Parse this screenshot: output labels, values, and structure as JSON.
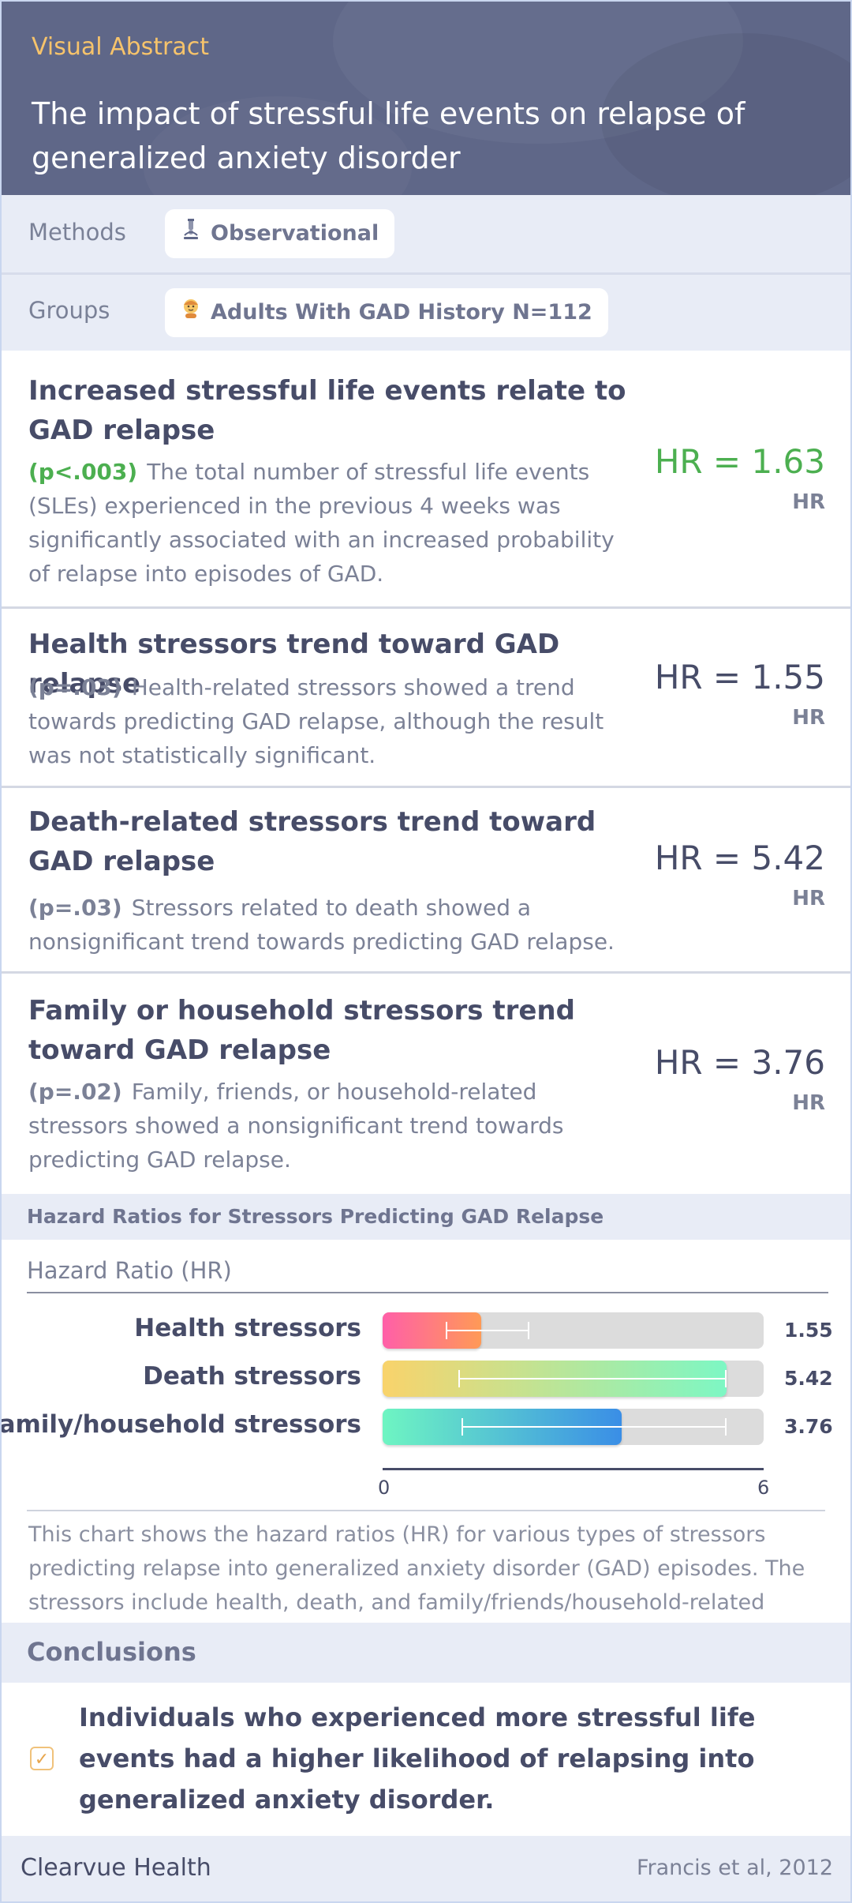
{
  "header": {
    "tag": "Visual Abstract",
    "title": "The impact of stressful life events on relapse of generalized anxiety disorder"
  },
  "methods": {
    "label": "Methods",
    "icon": "microscope-icon",
    "value": "Observational"
  },
  "groups": {
    "label": "Groups",
    "icon": "person-icon",
    "value": "Adults With GAD History N=112"
  },
  "findings": [
    {
      "title": "Increased stressful life events relate to GAD relapse",
      "p": "(p<.003)",
      "body": "The total number of stressful life events (SLEs) experienced in the previous 4 weeks was significantly associated with an increased probability of relapse into episodes of GAD.",
      "hr": "HR = 1.63",
      "hr_label": "HR",
      "highlight_color": "#4caf50"
    },
    {
      "title": "Health stressors trend toward GAD relapse",
      "p": "(p=.03)",
      "body": "Health-related stressors showed a trend towards predicting GAD relapse, although the result was not statistically significant.",
      "hr": "HR = 1.55",
      "hr_label": "HR"
    },
    {
      "title": "Death-related stressors trend toward GAD relapse",
      "p": "(p=.03)",
      "body": "Stressors related to death showed a nonsignificant trend towards predicting GAD relapse.",
      "hr": "HR = 5.42",
      "hr_label": "HR"
    },
    {
      "title": "Family or household stressors trend toward GAD relapse",
      "p": "(p=.02)",
      "body": "Family, friends, or household-related stressors showed a nonsignificant trend towards predicting GAD relapse.",
      "hr": "HR = 3.76",
      "hr_label": "HR"
    }
  ],
  "chart_section": {
    "heading": "Hazard Ratios for Stressors Predicting GAD Relapse",
    "caption": "This chart shows the hazard ratios (HR) for various types of stressors predicting relapse into generalized anxiety disorder (GAD) episodes. The stressors include health, death, and family/friends/household-related events."
  },
  "chart_data": {
    "type": "bar",
    "orientation": "horizontal",
    "title": "Hazard Ratio (HR)",
    "categories": [
      "Health stressors",
      "Death stressors",
      "Family/household stressors"
    ],
    "values": [
      1.55,
      5.42,
      3.76
    ],
    "value_labels": [
      "1.55",
      "5.42",
      "3.76"
    ],
    "error_bars": [
      [
        1.0,
        2.3
      ],
      [
        1.2,
        5.4
      ],
      [
        1.25,
        5.4
      ]
    ],
    "xlim": [
      0,
      6
    ],
    "xticks": [
      "0",
      "6"
    ],
    "bar_gradients": [
      [
        "#ff5fa8",
        "#ff9a56"
      ],
      [
        "#f9d36b",
        "#7df7c4"
      ],
      [
        "#6ef5c2",
        "#3a8ee6"
      ]
    ],
    "grid": false
  },
  "conclusions": {
    "heading": "Conclusions",
    "icon": "checkbox-icon",
    "text": "Individuals who experienced more stressful life events had a higher likelihood of relapsing into generalized anxiety disorder."
  },
  "footer": {
    "brand": "Clearvue Health",
    "citation": "Francis et al, 2012"
  }
}
